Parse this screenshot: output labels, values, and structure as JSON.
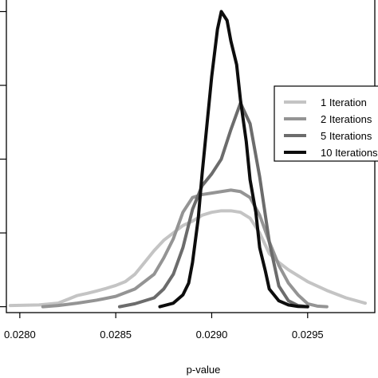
{
  "chart_data": {
    "type": "line",
    "xlabel": "p-value",
    "xlim": [
      0.02793,
      0.02985
    ],
    "ylim": [
      -0.02,
      1.05
    ],
    "x_ticks": [
      "0.0280",
      "0.0285",
      "0.0290",
      "0.0295"
    ],
    "x_tick_values": [
      0.028,
      0.0285,
      0.029,
      0.0295
    ],
    "y_tick_values": [
      0,
      0.25,
      0.5,
      0.75,
      1.0
    ],
    "grid": false,
    "legend_position": "right",
    "series": [
      {
        "name": "1 Iteration",
        "color": "#c4c4c4",
        "x": [
          0.02795,
          0.0281,
          0.0282,
          0.02825,
          0.0283,
          0.02835,
          0.0284,
          0.02845,
          0.0285,
          0.02855,
          0.0286,
          0.02865,
          0.0287,
          0.02875,
          0.0288,
          0.02885,
          0.0289,
          0.02895,
          0.029,
          0.02905,
          0.0291,
          0.02915,
          0.0292,
          0.02925,
          0.0293,
          0.02935,
          0.0294,
          0.02945,
          0.0295,
          0.02955,
          0.0296,
          0.0297,
          0.0298
        ],
        "y": [
          0.004,
          0.006,
          0.012,
          0.025,
          0.038,
          0.045,
          0.053,
          0.062,
          0.072,
          0.085,
          0.11,
          0.15,
          0.19,
          0.225,
          0.25,
          0.275,
          0.29,
          0.31,
          0.32,
          0.325,
          0.325,
          0.32,
          0.3,
          0.25,
          0.18,
          0.15,
          0.125,
          0.105,
          0.085,
          0.07,
          0.055,
          0.03,
          0.012
        ]
      },
      {
        "name": "2 Iterations",
        "color": "#949494",
        "x": [
          0.02812,
          0.0282,
          0.0283,
          0.0284,
          0.0285,
          0.0286,
          0.0287,
          0.02875,
          0.0288,
          0.02885,
          0.0289,
          0.02895,
          0.029,
          0.02905,
          0.0291,
          0.02915,
          0.0292,
          0.02925,
          0.0293,
          0.02935,
          0.0294,
          0.02945,
          0.0295,
          0.02955,
          0.0296
        ],
        "y": [
          0.0,
          0.004,
          0.012,
          0.022,
          0.035,
          0.06,
          0.11,
          0.165,
          0.23,
          0.32,
          0.37,
          0.38,
          0.385,
          0.39,
          0.395,
          0.39,
          0.37,
          0.31,
          0.22,
          0.14,
          0.08,
          0.04,
          0.01,
          0.002,
          0.0
        ]
      },
      {
        "name": "5 Iterations",
        "color": "#6c6c6c",
        "x": [
          0.02852,
          0.0286,
          0.0287,
          0.02875,
          0.0288,
          0.02885,
          0.0289,
          0.02895,
          0.029,
          0.02905,
          0.0291,
          0.02915,
          0.0292,
          0.02925,
          0.0293,
          0.02935,
          0.0294,
          0.02945,
          0.0295
        ],
        "y": [
          0.0,
          0.01,
          0.03,
          0.06,
          0.11,
          0.2,
          0.33,
          0.41,
          0.45,
          0.5,
          0.6,
          0.69,
          0.62,
          0.44,
          0.22,
          0.07,
          0.02,
          0.004,
          0.0
        ]
      },
      {
        "name": "10 Iterations",
        "color": "#0d0d0d",
        "x": [
          0.02873,
          0.0288,
          0.02885,
          0.02888,
          0.0289,
          0.02893,
          0.02895,
          0.029,
          0.02903,
          0.02905,
          0.02908,
          0.0291,
          0.02913,
          0.02915,
          0.02918,
          0.0292,
          0.02923,
          0.02925,
          0.02928,
          0.0293,
          0.02935,
          0.0294,
          0.02945,
          0.0295
        ],
        "y": [
          0.0,
          0.012,
          0.04,
          0.08,
          0.15,
          0.3,
          0.45,
          0.78,
          0.94,
          1.0,
          0.97,
          0.9,
          0.82,
          0.7,
          0.56,
          0.43,
          0.32,
          0.2,
          0.12,
          0.06,
          0.02,
          0.006,
          0.001,
          0.0
        ]
      }
    ]
  }
}
